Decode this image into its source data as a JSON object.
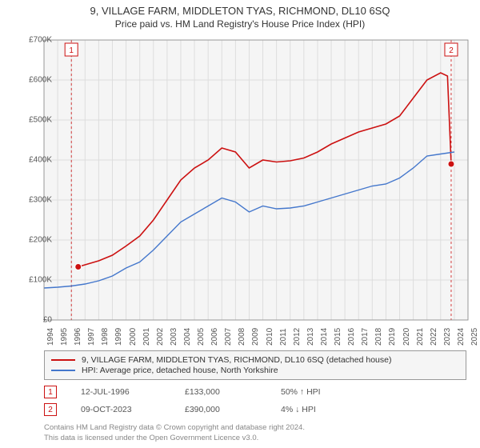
{
  "header": {
    "address": "9, VILLAGE FARM, MIDDLETON TYAS, RICHMOND, DL10 6SQ",
    "subtitle": "Price paid vs. HM Land Registry's House Price Index (HPI)"
  },
  "chart": {
    "type": "line",
    "plot_bg": "#f5f5f5",
    "grid_color": "#dddddd",
    "axis_color": "#888888",
    "ylim": [
      0,
      700000
    ],
    "ytick_step": 100000,
    "yticks": [
      "£0",
      "£100K",
      "£200K",
      "£300K",
      "£400K",
      "£500K",
      "£600K",
      "£700K"
    ],
    "xlim": [
      1994,
      2025
    ],
    "xticks": [
      "1994",
      "1995",
      "1996",
      "1997",
      "1998",
      "1999",
      "2000",
      "2001",
      "2002",
      "2003",
      "2004",
      "2005",
      "2006",
      "2007",
      "2008",
      "2009",
      "2010",
      "2011",
      "2012",
      "2013",
      "2014",
      "2015",
      "2016",
      "2017",
      "2018",
      "2019",
      "2020",
      "2021",
      "2022",
      "2023",
      "2024",
      "2025"
    ],
    "series": [
      {
        "name": "property",
        "color": "#cc1111",
        "width": 1.6,
        "points": [
          [
            1996.5,
            133000
          ],
          [
            1997,
            138000
          ],
          [
            1998,
            148000
          ],
          [
            1999,
            162000
          ],
          [
            2000,
            185000
          ],
          [
            2001,
            210000
          ],
          [
            2002,
            250000
          ],
          [
            2003,
            300000
          ],
          [
            2004,
            350000
          ],
          [
            2005,
            380000
          ],
          [
            2006,
            400000
          ],
          [
            2007,
            430000
          ],
          [
            2008,
            420000
          ],
          [
            2009,
            380000
          ],
          [
            2010,
            400000
          ],
          [
            2011,
            395000
          ],
          [
            2012,
            398000
          ],
          [
            2013,
            405000
          ],
          [
            2014,
            420000
          ],
          [
            2015,
            440000
          ],
          [
            2016,
            455000
          ],
          [
            2017,
            470000
          ],
          [
            2018,
            480000
          ],
          [
            2019,
            490000
          ],
          [
            2020,
            510000
          ],
          [
            2021,
            555000
          ],
          [
            2022,
            600000
          ],
          [
            2023,
            618000
          ],
          [
            2023.5,
            610000
          ],
          [
            2023.77,
            390000
          ]
        ]
      },
      {
        "name": "hpi",
        "color": "#4477cc",
        "width": 1.4,
        "points": [
          [
            1994,
            80000
          ],
          [
            1995,
            82000
          ],
          [
            1996,
            85000
          ],
          [
            1997,
            90000
          ],
          [
            1998,
            98000
          ],
          [
            1999,
            110000
          ],
          [
            2000,
            130000
          ],
          [
            2001,
            145000
          ],
          [
            2002,
            175000
          ],
          [
            2003,
            210000
          ],
          [
            2004,
            245000
          ],
          [
            2005,
            265000
          ],
          [
            2006,
            285000
          ],
          [
            2007,
            305000
          ],
          [
            2008,
            295000
          ],
          [
            2009,
            270000
          ],
          [
            2010,
            285000
          ],
          [
            2011,
            278000
          ],
          [
            2012,
            280000
          ],
          [
            2013,
            285000
          ],
          [
            2014,
            295000
          ],
          [
            2015,
            305000
          ],
          [
            2016,
            315000
          ],
          [
            2017,
            325000
          ],
          [
            2018,
            335000
          ],
          [
            2019,
            340000
          ],
          [
            2020,
            355000
          ],
          [
            2021,
            380000
          ],
          [
            2022,
            410000
          ],
          [
            2023,
            415000
          ],
          [
            2024,
            420000
          ]
        ]
      }
    ],
    "markers": [
      {
        "id": "1",
        "color": "#cc1111",
        "x": 1996.5,
        "y": 133000,
        "vline": 1996
      },
      {
        "id": "2",
        "color": "#cc1111",
        "x": 2023.77,
        "y": 390000,
        "vline": 2023.77
      }
    ]
  },
  "legend": {
    "items": [
      {
        "color": "#cc1111",
        "label": "9, VILLAGE FARM, MIDDLETON TYAS, RICHMOND, DL10 6SQ (detached house)"
      },
      {
        "color": "#4477cc",
        "label": "HPI: Average price, detached house, North Yorkshire"
      }
    ]
  },
  "transactions": [
    {
      "badge": "1",
      "color": "#cc1111",
      "date": "12-JUL-1996",
      "price": "£133,000",
      "delta": "50% ↑ HPI"
    },
    {
      "badge": "2",
      "color": "#cc1111",
      "date": "09-OCT-2023",
      "price": "£390,000",
      "delta": "4% ↓ HPI"
    }
  ],
  "footer": {
    "line1": "Contains HM Land Registry data © Crown copyright and database right 2024.",
    "line2": "This data is licensed under the Open Government Licence v3.0."
  }
}
